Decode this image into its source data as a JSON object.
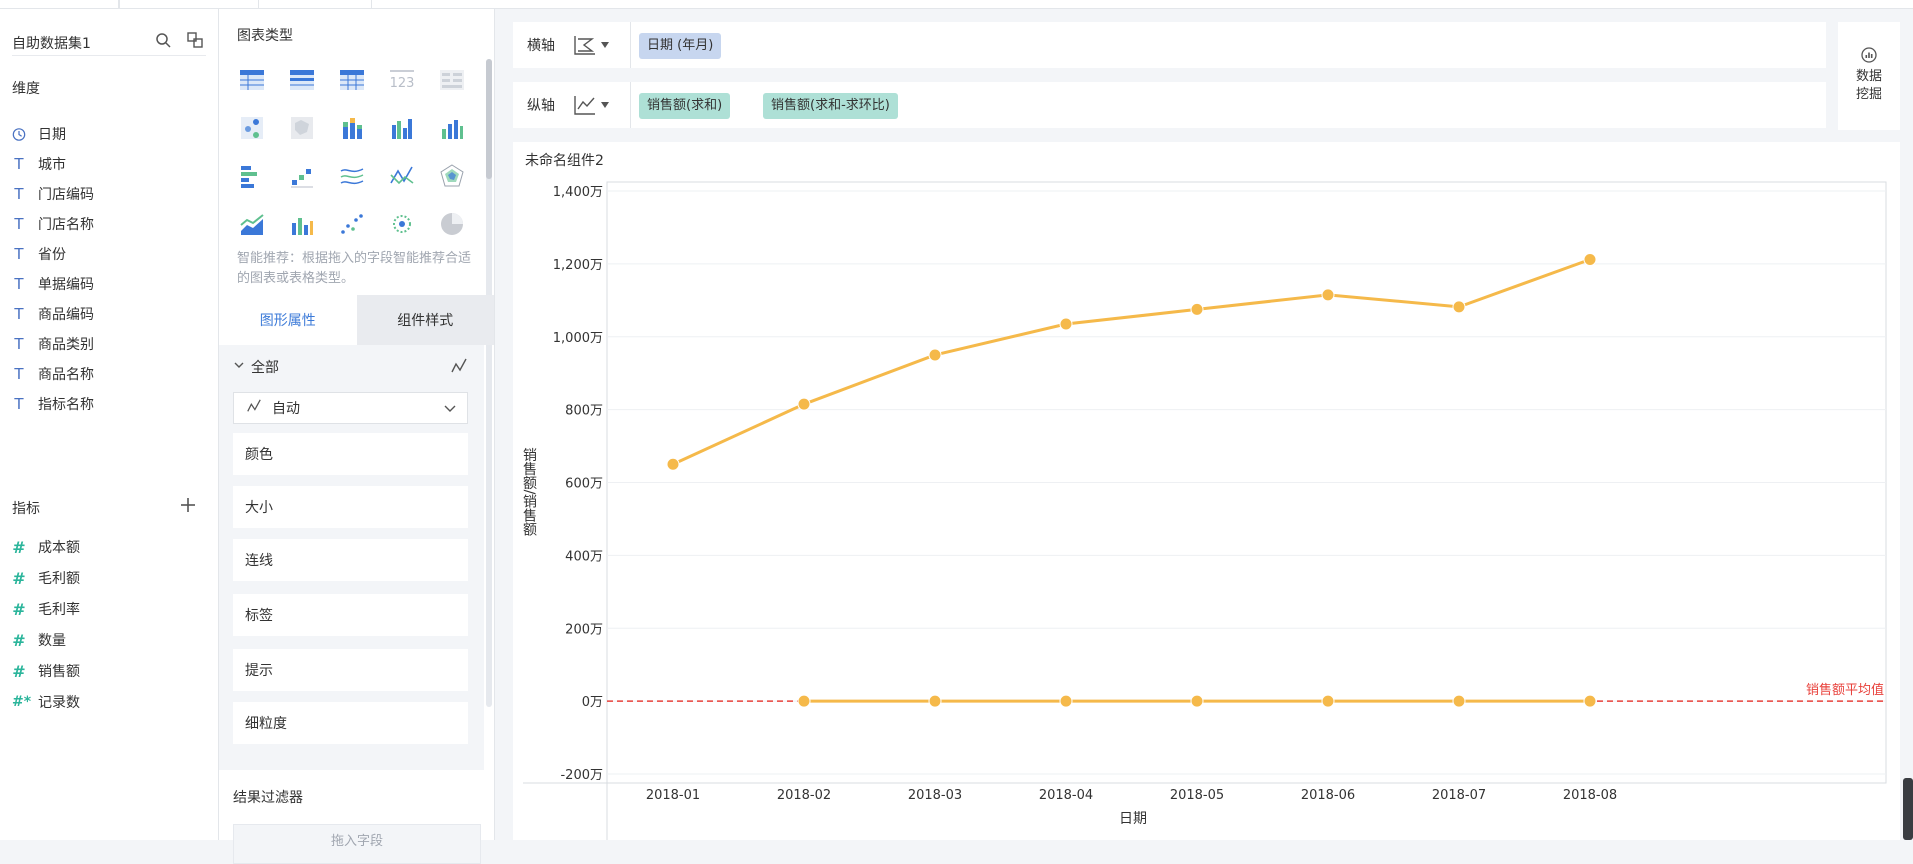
{
  "dataset": {
    "title": "自助数据集1",
    "dimension_title": "维度",
    "dimensions": [
      "日期",
      "城市",
      "门店编码",
      "门店名称",
      "省份",
      "单据编码",
      "商品编码",
      "商品类别",
      "商品名称",
      "指标名称"
    ],
    "measure_title": "指标",
    "measures": [
      "成本额",
      "毛利额",
      "毛利率",
      "数量",
      "销售额",
      "记录数"
    ]
  },
  "chart_panel": {
    "title": "图表类型",
    "hint": "智能推荐：根据拖入的字段智能推荐合适的图表或表格类型。",
    "tab_graph": "图形属性",
    "tab_style": "组件样式",
    "all_label": "全部",
    "auto_label": "自动",
    "props": [
      "颜色",
      "大小",
      "连线",
      "标签",
      "提示",
      "细粒度"
    ],
    "result_filter_title": "结果过滤器",
    "drop_hint": "拖入字段"
  },
  "axes": {
    "x_label": "横轴",
    "x_field": "日期 (年月)",
    "y_label": "纵轴",
    "y_fields": [
      "销售额(求和)",
      "销售额(求和-求环比)"
    ]
  },
  "data_mining_label": "数据挖掘",
  "component_title": "未命名组件2",
  "chart_data": {
    "type": "line",
    "categories": [
      "2018-01",
      "2018-02",
      "2018-03",
      "2018-04",
      "2018-05",
      "2018-06",
      "2018-07",
      "2018-08"
    ],
    "series": [
      {
        "name": "销售额(求和)",
        "values": [
          650,
          815,
          950,
          1035,
          1075,
          1115,
          1082,
          1212
        ],
        "color": "#f5b94a"
      },
      {
        "name": "销售额(求和-求环比)",
        "values": [
          null,
          0,
          0,
          0,
          0,
          0,
          0,
          0
        ],
        "color": "#f5b94a"
      }
    ],
    "yticks": [
      -200,
      0,
      200,
      400,
      600,
      800,
      1000,
      1200,
      1400
    ],
    "ytick_labels": [
      "-200万",
      "0万",
      "200万",
      "400万",
      "600万",
      "800万",
      "1,000万",
      "1,200万",
      "1,400万"
    ],
    "ylim": [
      -200,
      1400
    ],
    "xlabel": "日期",
    "ylabel": "销售额/销售额",
    "reference_line": {
      "label": "销售额平均值",
      "value": 0,
      "color": "#e8413b"
    },
    "grid": true
  }
}
